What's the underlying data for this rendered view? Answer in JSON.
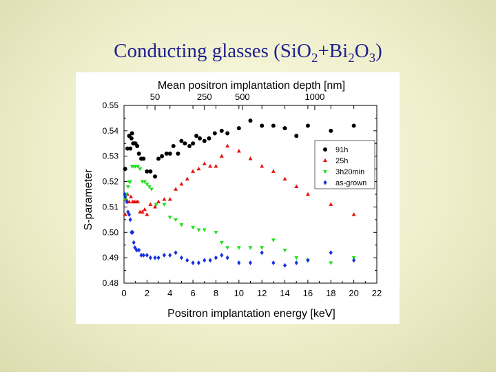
{
  "slide": {
    "title_parts": [
      "Conducting glasses (Si",
      "O",
      "2",
      "+Bi",
      "2",
      "O",
      "3",
      ")"
    ]
  },
  "colors": {
    "title": "#1f1f8f",
    "series_91h": "#000000",
    "series_25h": "#e8120c",
    "series_3h20min": "#22e01e",
    "series_asgrown": "#1530e0"
  },
  "chart_data": {
    "type": "scatter",
    "title": "Mean positron implantation depth [nm]",
    "xlabel": "Positron implantation energy [keV]",
    "ylabel": "S-parameter",
    "xlim": [
      0,
      22
    ],
    "ylim": [
      0.48,
      0.55
    ],
    "x_ticks": [
      "0",
      "2",
      "4",
      "6",
      "8",
      "10",
      "12",
      "14",
      "16",
      "18",
      "20",
      "22"
    ],
    "y_ticks": [
      "0.48",
      "0.49",
      "0.50",
      "0.51",
      "0.52",
      "0.53",
      "0.54",
      "0.55"
    ],
    "top_axis": {
      "ticks": [
        {
          "label": "50",
          "energy": 2.7
        },
        {
          "label": "250",
          "energy": 7.0
        },
        {
          "label": "500",
          "energy": 10.3
        },
        {
          "label": "1000",
          "energy": 16.6
        }
      ]
    },
    "legend_position": "right",
    "series": [
      {
        "name": "91h",
        "marker": "circle",
        "color": "#000000",
        "points": [
          [
            0.1,
            0.525
          ],
          [
            0.3,
            0.533
          ],
          [
            0.45,
            0.538
          ],
          [
            0.55,
            0.533
          ],
          [
            0.65,
            0.537
          ],
          [
            0.7,
            0.539
          ],
          [
            0.8,
            0.535
          ],
          [
            0.9,
            0.535
          ],
          [
            1.0,
            0.535
          ],
          [
            1.15,
            0.534
          ],
          [
            1.3,
            0.531
          ],
          [
            1.5,
            0.529
          ],
          [
            1.7,
            0.529
          ],
          [
            2.0,
            0.524
          ],
          [
            2.3,
            0.524
          ],
          [
            2.7,
            0.522
          ],
          [
            3.0,
            0.529
          ],
          [
            3.3,
            0.53
          ],
          [
            3.7,
            0.531
          ],
          [
            4.0,
            0.531
          ],
          [
            4.3,
            0.534
          ],
          [
            4.7,
            0.531
          ],
          [
            5.0,
            0.536
          ],
          [
            5.3,
            0.535
          ],
          [
            5.7,
            0.534
          ],
          [
            6.0,
            0.535
          ],
          [
            6.3,
            0.538
          ],
          [
            6.6,
            0.537
          ],
          [
            7.0,
            0.536
          ],
          [
            7.4,
            0.537
          ],
          [
            7.9,
            0.539
          ],
          [
            8.5,
            0.54
          ],
          [
            9.0,
            0.539
          ],
          [
            10.0,
            0.541
          ],
          [
            11.0,
            0.544
          ],
          [
            12.0,
            0.542
          ],
          [
            13.0,
            0.542
          ],
          [
            14.0,
            0.541
          ],
          [
            15.0,
            0.538
          ],
          [
            16.0,
            0.542
          ],
          [
            18.0,
            0.54
          ],
          [
            20.0,
            0.542
          ]
        ]
      },
      {
        "name": "25h",
        "marker": "triangle-up",
        "color": "#e8120c",
        "points": [
          [
            0.1,
            0.507
          ],
          [
            0.2,
            0.513
          ],
          [
            0.3,
            0.515
          ],
          [
            0.45,
            0.512
          ],
          [
            0.6,
            0.514
          ],
          [
            0.75,
            0.512
          ],
          [
            0.9,
            0.512
          ],
          [
            1.05,
            0.512
          ],
          [
            1.2,
            0.512
          ],
          [
            1.4,
            0.508
          ],
          [
            1.6,
            0.508
          ],
          [
            1.8,
            0.509
          ],
          [
            2.0,
            0.507
          ],
          [
            2.3,
            0.511
          ],
          [
            2.7,
            0.51
          ],
          [
            3.0,
            0.512
          ],
          [
            3.5,
            0.513
          ],
          [
            4.0,
            0.513
          ],
          [
            4.5,
            0.517
          ],
          [
            5.0,
            0.519
          ],
          [
            5.5,
            0.521
          ],
          [
            6.0,
            0.524
          ],
          [
            6.5,
            0.525
          ],
          [
            7.0,
            0.527
          ],
          [
            7.5,
            0.526
          ],
          [
            8.0,
            0.526
          ],
          [
            8.5,
            0.53
          ],
          [
            9.0,
            0.534
          ],
          [
            10.0,
            0.532
          ],
          [
            11.0,
            0.529
          ],
          [
            12.0,
            0.526
          ],
          [
            13.0,
            0.524
          ],
          [
            14.0,
            0.521
          ],
          [
            15.0,
            0.518
          ],
          [
            16.0,
            0.515
          ],
          [
            18.0,
            0.511
          ],
          [
            20.0,
            0.507
          ]
        ]
      },
      {
        "name": "3h20min",
        "marker": "triangle-down",
        "color": "#22e01e",
        "points": [
          [
            0.1,
            0.513
          ],
          [
            0.2,
            0.515
          ],
          [
            0.35,
            0.518
          ],
          [
            0.45,
            0.52
          ],
          [
            0.55,
            0.52
          ],
          [
            0.7,
            0.526
          ],
          [
            0.85,
            0.526
          ],
          [
            1.0,
            0.526
          ],
          [
            1.2,
            0.526
          ],
          [
            1.4,
            0.525
          ],
          [
            1.6,
            0.52
          ],
          [
            1.8,
            0.52
          ],
          [
            2.0,
            0.519
          ],
          [
            2.2,
            0.518
          ],
          [
            2.4,
            0.517
          ],
          [
            2.8,
            0.511
          ],
          [
            3.5,
            0.511
          ],
          [
            4.0,
            0.506
          ],
          [
            4.5,
            0.505
          ],
          [
            5.0,
            0.503
          ],
          [
            6.0,
            0.502
          ],
          [
            6.5,
            0.501
          ],
          [
            7.0,
            0.501
          ],
          [
            8.0,
            0.5
          ],
          [
            8.5,
            0.496
          ],
          [
            9.0,
            0.494
          ],
          [
            10.0,
            0.494
          ],
          [
            11.0,
            0.494
          ],
          [
            12.0,
            0.494
          ],
          [
            13.0,
            0.497
          ],
          [
            14.0,
            0.493
          ],
          [
            15.0,
            0.49
          ],
          [
            16.0,
            0.489
          ],
          [
            18.0,
            0.488
          ],
          [
            20.0,
            0.49
          ]
        ]
      },
      {
        "name": "as-grown",
        "marker": "diamond",
        "color": "#1530e0",
        "points": [
          [
            0.05,
            0.515
          ],
          [
            0.1,
            0.514
          ],
          [
            0.25,
            0.512
          ],
          [
            0.35,
            0.508
          ],
          [
            0.45,
            0.507
          ],
          [
            0.55,
            0.505
          ],
          [
            0.65,
            0.5
          ],
          [
            0.75,
            0.5
          ],
          [
            0.85,
            0.496
          ],
          [
            0.95,
            0.494
          ],
          [
            1.1,
            0.493
          ],
          [
            1.3,
            0.493
          ],
          [
            1.5,
            0.491
          ],
          [
            1.7,
            0.491
          ],
          [
            2.0,
            0.491
          ],
          [
            2.3,
            0.49
          ],
          [
            2.7,
            0.49
          ],
          [
            3.0,
            0.49
          ],
          [
            3.5,
            0.491
          ],
          [
            4.0,
            0.491
          ],
          [
            4.5,
            0.492
          ],
          [
            5.0,
            0.49
          ],
          [
            5.5,
            0.489
          ],
          [
            6.0,
            0.488
          ],
          [
            6.5,
            0.488
          ],
          [
            7.0,
            0.489
          ],
          [
            7.5,
            0.489
          ],
          [
            8.0,
            0.49
          ],
          [
            8.5,
            0.491
          ],
          [
            9.0,
            0.49
          ],
          [
            10.0,
            0.488
          ],
          [
            11.0,
            0.488
          ],
          [
            12.0,
            0.492
          ],
          [
            13.0,
            0.488
          ],
          [
            14.0,
            0.487
          ],
          [
            15.0,
            0.488
          ],
          [
            16.0,
            0.489
          ],
          [
            18.0,
            0.492
          ],
          [
            20.0,
            0.489
          ]
        ]
      }
    ]
  }
}
